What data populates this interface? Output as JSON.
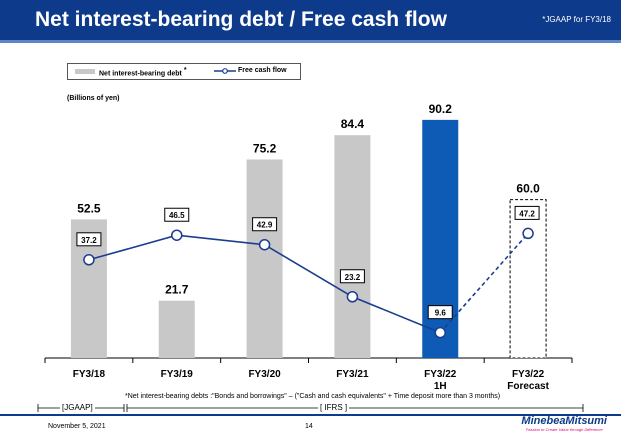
{
  "header": {
    "title": "Net interest-bearing debt / Free cash flow",
    "note": "*JGAAP for FY3/18"
  },
  "legend": {
    "bar_label": "Net interest-bearing debt",
    "bar_mark": "*",
    "line_label": "Free cash flow"
  },
  "unit": "(Billions of yen)",
  "chart_data": {
    "type": "bar",
    "categories": [
      [
        "FY3/18"
      ],
      [
        "FY3/19"
      ],
      [
        "FY3/20"
      ],
      [
        "FY3/21"
      ],
      [
        "FY3/22",
        "1H"
      ],
      [
        "FY3/22",
        "Forecast"
      ]
    ],
    "series": [
      {
        "name": "Net interest-bearing debt",
        "type": "bar",
        "values": [
          52.5,
          21.7,
          75.2,
          84.4,
          90.2,
          60.0
        ],
        "labels": [
          "52.5",
          "21.7",
          "75.2",
          "84.4",
          "90.2",
          "60.0"
        ],
        "styles": [
          "actual",
          "actual",
          "actual",
          "actual",
          "highlight",
          "forecast"
        ]
      },
      {
        "name": "Free cash flow",
        "type": "line",
        "values": [
          37.2,
          46.5,
          42.9,
          23.2,
          9.6,
          47.2
        ],
        "labels": [
          "37.2",
          "46.5",
          "42.9",
          "23.2",
          "9.6",
          "47.2"
        ],
        "dashed_last_segment": true
      }
    ],
    "ylim": [
      0,
      100
    ],
    "grid": false,
    "legend_position": "top-left"
  },
  "colors": {
    "header": "#0d3a8a",
    "bar": "#c8c8c8",
    "bar_highlight": "#0d5bb5",
    "line": "#1a3d8f"
  },
  "footnote": "*Net interest-bearing debts :\"Bonds and borrowings\" – (\"Cash and cash equivalents\" + Time deposit more than 3 months)",
  "era": {
    "jgaap": "[JGAAP]",
    "ifrs": "[ IFRS ]"
  },
  "footer": {
    "date": "November 5, 2021",
    "page": "14",
    "logo": "MinebeaMitsumi",
    "tagline": "Passion to Create Value through Difference"
  }
}
